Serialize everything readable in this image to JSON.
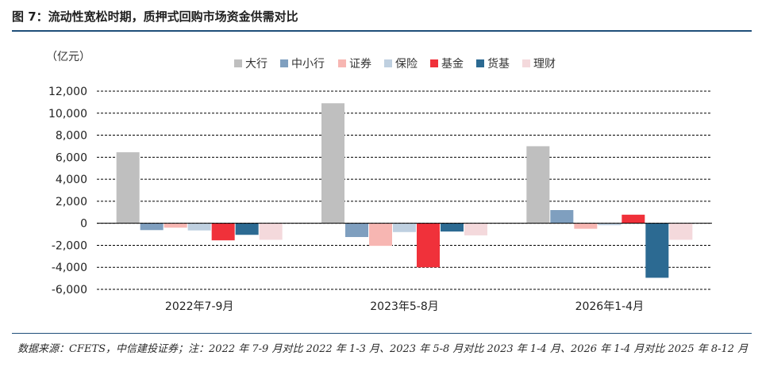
{
  "figure": {
    "title": "图 7：流动性宽松时期，质押式回购市场资金供需对比",
    "source": "数据来源：CFETS，中信建投证券；注：2022 年 7-9 月对比 2022 年 1-3 月、2023 年 5-8 月对比 2023 年 1-4 月、2026 年 1-4 月对比 2025 年 8-12 月"
  },
  "chart_data": {
    "type": "bar",
    "unit_label": "（亿元）",
    "categories": [
      "2022年7-9月",
      "2023年5-8月",
      "2026年1-4月"
    ],
    "series": [
      {
        "name": "大行",
        "color": "#bfbfbf",
        "values": [
          6450,
          10900,
          7000
        ]
      },
      {
        "name": "中小行",
        "color": "#7f9fbf",
        "values": [
          -620,
          -1250,
          1200
        ]
      },
      {
        "name": "证券",
        "color": "#f7b6b2",
        "values": [
          -400,
          -2050,
          -500
        ]
      },
      {
        "name": "保险",
        "color": "#bfd0e0",
        "values": [
          -650,
          -800,
          -180
        ]
      },
      {
        "name": "基金",
        "color": "#f0313a",
        "values": [
          -1550,
          -4000,
          780
        ]
      },
      {
        "name": "货基",
        "color": "#2c6a92",
        "values": [
          -1050,
          -750,
          -4950
        ]
      },
      {
        "name": "理财",
        "color": "#f4d9dc",
        "values": [
          -1500,
          -1100,
          -1500
        ]
      }
    ],
    "ylim": [
      -6000,
      12000
    ],
    "yticks": [
      12000,
      10000,
      8000,
      6000,
      4000,
      2000,
      0,
      -2000,
      -4000,
      -6000
    ],
    "ytick_labels": [
      "12,000",
      "10,000",
      "8,000",
      "6,000",
      "4,000",
      "2,000",
      "0",
      "-2,000",
      "-4,000",
      "-6,000"
    ],
    "grid": "dashed horizontal",
    "legend_position": "top"
  }
}
